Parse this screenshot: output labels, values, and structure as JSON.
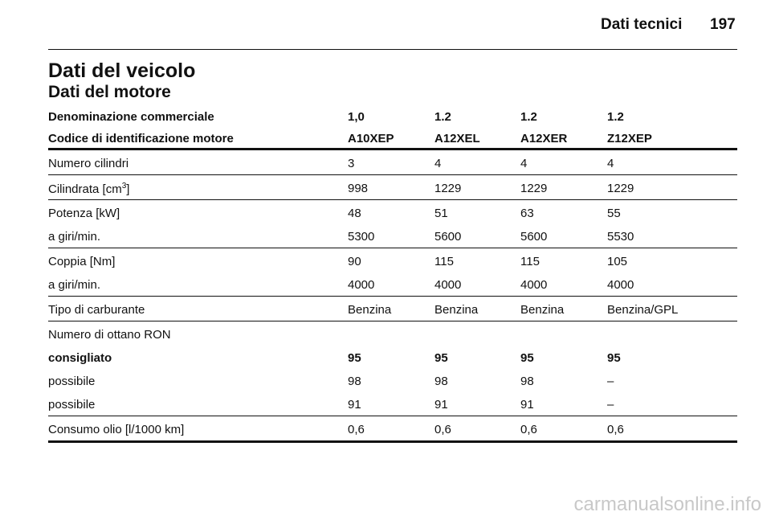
{
  "header": {
    "section": "Dati tecnici",
    "page": "197"
  },
  "title": "Dati del veicolo",
  "subtitle": "Dati del motore",
  "table": {
    "head": [
      {
        "label": "Denominazione commerciale",
        "values": [
          "1,0",
          "1.2",
          "1.2",
          "1.2"
        ]
      },
      {
        "label": "Codice di identificazione motore",
        "values": [
          "A10XEP",
          "A12XEL",
          "A12XER",
          "Z12XEP"
        ]
      }
    ],
    "groups": [
      [
        {
          "label": "Numero cilindri",
          "values": [
            "3",
            "4",
            "4",
            "4"
          ]
        }
      ],
      [
        {
          "label": {
            "text": "Cilindrata [cm",
            "sup": "3",
            "after": "]"
          },
          "values": [
            "998",
            "1229",
            "1229",
            "1229"
          ]
        }
      ],
      [
        {
          "label": "Potenza [kW]",
          "values": [
            "48",
            "51",
            "63",
            "55"
          ]
        },
        {
          "label": "a giri/min.",
          "values": [
            "5300",
            "5600",
            "5600",
            "5530"
          ]
        }
      ],
      [
        {
          "label": "Coppia [Nm]",
          "values": [
            "90",
            "115",
            "115",
            "105"
          ]
        },
        {
          "label": "a giri/min.",
          "values": [
            "4000",
            "4000",
            "4000",
            "4000"
          ]
        }
      ],
      [
        {
          "label": "Tipo di carburante",
          "values": [
            "Benzina",
            "Benzina",
            "Benzina",
            "Benzina/GPL"
          ]
        }
      ],
      [
        {
          "label": "Numero di ottano RON"
        },
        {
          "label": "consigliato",
          "values": [
            "95",
            "95",
            "95",
            "95"
          ],
          "bold": true
        },
        {
          "label": "possibile",
          "values": [
            "98",
            "98",
            "98",
            "–"
          ]
        },
        {
          "label": "possibile",
          "values": [
            "91",
            "91",
            "91",
            "–"
          ]
        }
      ],
      [
        {
          "label": "Consumo olio [l/1000 km]",
          "values": [
            "0,6",
            "0,6",
            "0,6",
            "0,6"
          ]
        }
      ]
    ]
  },
  "watermark": "carmanualsonline.info"
}
